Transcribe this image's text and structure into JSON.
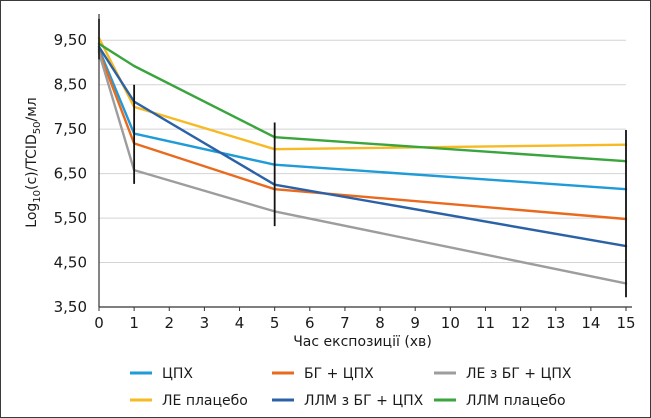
{
  "chart_data": {
    "type": "line",
    "x": [
      0,
      1,
      5,
      15
    ],
    "x_ticks": [
      0,
      1,
      2,
      3,
      4,
      5,
      6,
      7,
      8,
      9,
      10,
      11,
      12,
      13,
      14,
      15
    ],
    "y_ticks": [
      "3,50",
      "4,50",
      "5,50",
      "6,50",
      "7,50",
      "8,50",
      "9,50"
    ],
    "y_tick_values": [
      3.5,
      4.5,
      5.5,
      6.5,
      7.5,
      8.5,
      9.5
    ],
    "xlim": [
      0,
      15
    ],
    "ylim": [
      3.5,
      10.0
    ],
    "xlabel": "Час експозиції (хв)",
    "ylabel": {
      "base": "Log",
      "sub1": "10",
      "mid": "(c)/TCID",
      "sub2": "50",
      "end": "/мл"
    },
    "grid": "horizontal",
    "legend_position": "bottom",
    "series": [
      {
        "name": "ЦПХ",
        "color": "#1f9bd7",
        "values": [
          9.3,
          7.4,
          6.7,
          6.15
        ]
      },
      {
        "name": "БГ + ЦПХ",
        "color": "#ea6a1d",
        "values": [
          9.25,
          7.18,
          6.15,
          5.48
        ]
      },
      {
        "name": "ЛЕ з БГ + ЦПХ",
        "color": "#9d9d9d",
        "values": [
          9.22,
          6.58,
          5.65,
          4.03
        ]
      },
      {
        "name": "ЛЕ плацебо",
        "color": "#f7b924",
        "values": [
          9.55,
          8.0,
          7.05,
          7.15
        ]
      },
      {
        "name": "ЛЛМ з БГ + ЦПХ",
        "color": "#2b61a6",
        "values": [
          9.35,
          8.12,
          6.25,
          4.87
        ]
      },
      {
        "name": "ЛЛМ плацебо",
        "color": "#3aa43d",
        "values": [
          9.42,
          8.92,
          7.32,
          6.78
        ]
      }
    ],
    "error_bars": [
      {
        "x": 0,
        "low": 9.07,
        "high": 9.98
      },
      {
        "x": 1,
        "low": 6.27,
        "high": 8.5
      },
      {
        "x": 5,
        "low": 5.32,
        "high": 7.65
      },
      {
        "x": 15,
        "low": 3.72,
        "high": 7.48
      }
    ],
    "error_bar_color": "#111111"
  }
}
